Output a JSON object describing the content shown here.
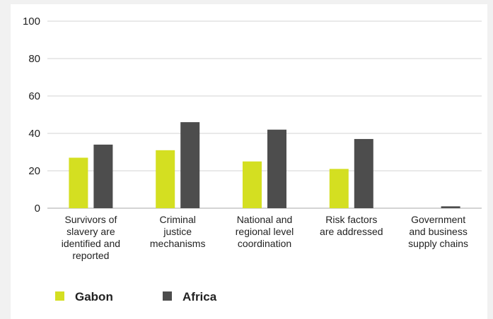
{
  "chart_data": {
    "type": "bar",
    "categories": [
      [
        "Survivors of",
        "slavery are",
        "identified and",
        "reported"
      ],
      [
        "Criminal",
        "justice",
        "mechanisms"
      ],
      [
        "National and",
        "regional level",
        "coordination"
      ],
      [
        "Risk factors",
        "are addressed"
      ],
      [
        "Government",
        "and business",
        "supply chains"
      ]
    ],
    "series": [
      {
        "name": "Gabon",
        "color": "#d4df21",
        "values": [
          27,
          31,
          25,
          21,
          0
        ]
      },
      {
        "name": "Africa",
        "color": "#4d4d4d",
        "values": [
          34,
          46,
          42,
          37,
          1
        ]
      }
    ],
    "ylim": [
      0,
      100
    ],
    "yticks": [
      "0",
      "20",
      "40",
      "60",
      "80",
      "100"
    ],
    "grid": true,
    "legend": "bottom-left"
  }
}
